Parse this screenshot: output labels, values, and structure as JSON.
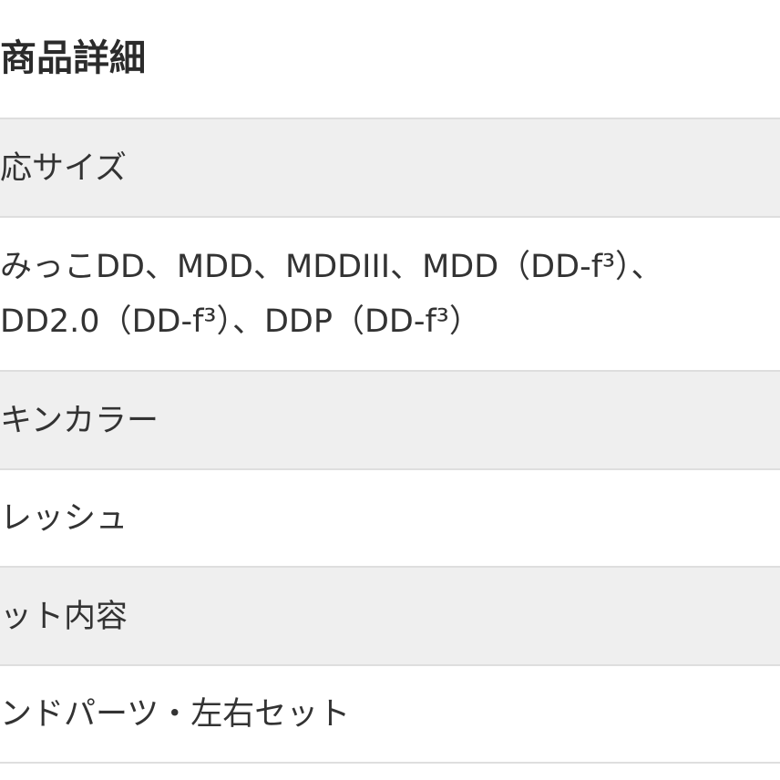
{
  "title": "商品詳細",
  "rows": [
    {
      "type": "head",
      "lines": [
        "応サイズ"
      ]
    },
    {
      "type": "body",
      "lines": [
        "みっこDD、MDD、MDDIII、MDD（DD-f³）、",
        "DD2.0（DD-f³）、DDP（DD-f³）"
      ]
    },
    {
      "type": "head",
      "lines": [
        "キンカラー"
      ]
    },
    {
      "type": "body",
      "lines": [
        "レッシュ"
      ]
    },
    {
      "type": "head",
      "lines": [
        "ット内容"
      ]
    },
    {
      "type": "body",
      "lines": [
        "ンドパーツ・左右セット"
      ]
    }
  ]
}
